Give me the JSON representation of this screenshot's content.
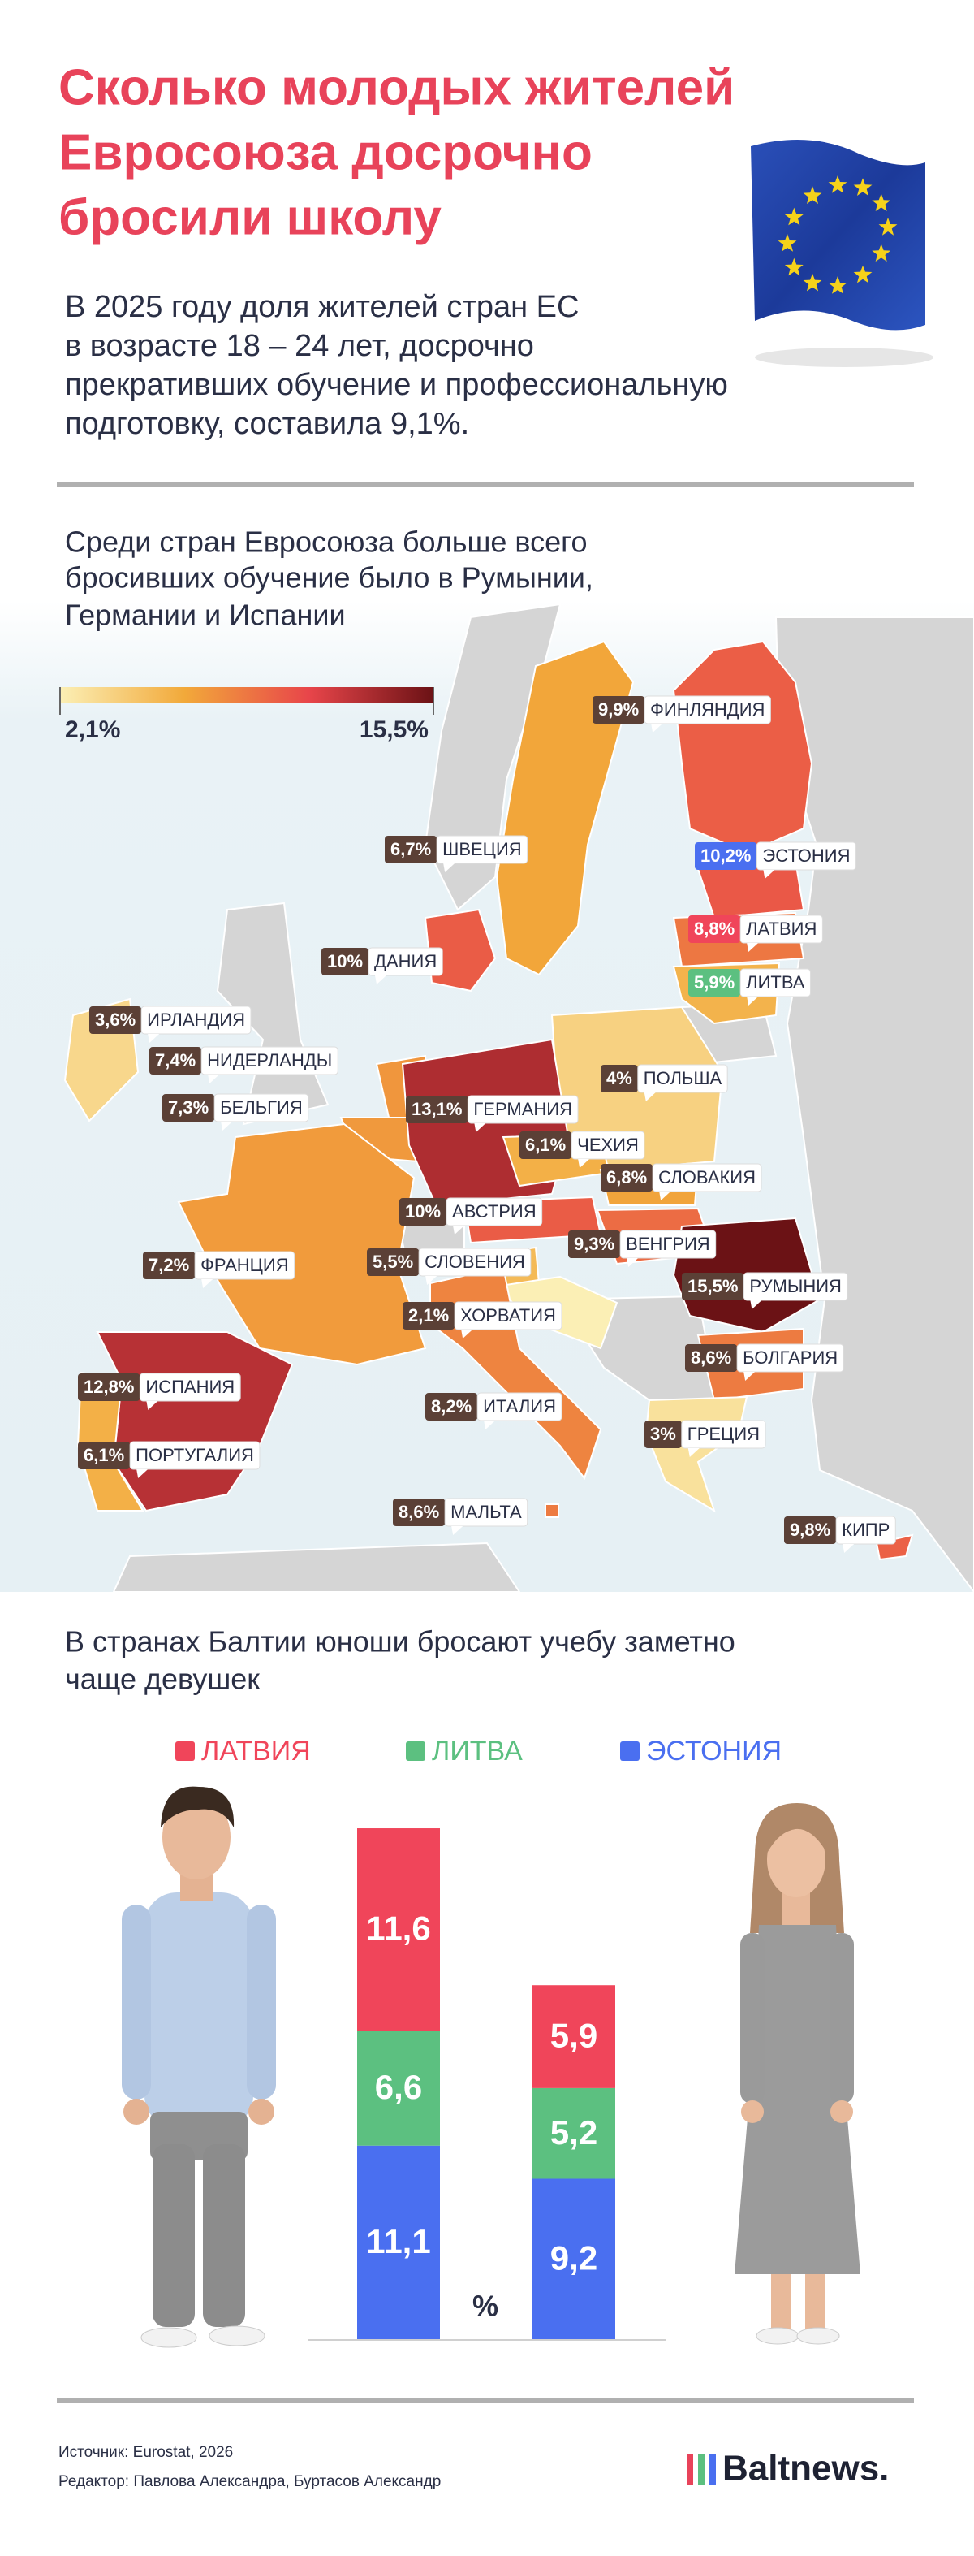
{
  "title": [
    "Сколько молодых жителей",
    "Евросоюза досрочно",
    "бросили школу"
  ],
  "subtitle": [
    "В 2025 году доля жителей стран ЕС",
    "в возрасте 18 – 24 лет, досрочно",
    "прекративших обучение и профессиональную",
    "подготовку, составила 9,1%."
  ],
  "map": {
    "heading": [
      "Среди стран Евросоюза больше всего",
      "бросивших обучение было в Румынии,",
      "Германии и Испании"
    ],
    "scale": [
      {
        "value": 2.1,
        "label": "2,1%"
      },
      {
        "value": 15.5,
        "label": "15,5%"
      }
    ],
    "scale_colors": [
      "#fbefb5",
      "#f2a93a",
      "#e8454a",
      "#6b1215"
    ],
    "countries": [
      {
        "name": "ФИНЛЯНДИЯ",
        "value": 9.9,
        "value_label": "9,9%",
        "badge": "#5b4036"
      },
      {
        "name": "ШВЕЦИЯ",
        "value": 6.7,
        "value_label": "6,7%",
        "badge": "#5b4036"
      },
      {
        "name": "ЭСТОНИЯ",
        "value": 10.2,
        "value_label": "10,2%",
        "badge": "#4a6ff0"
      },
      {
        "name": "ЛАТВИЯ",
        "value": 8.8,
        "value_label": "8,8%",
        "badge": "#f0455a"
      },
      {
        "name": "ДАНИЯ",
        "value": 10,
        "value_label": "10%",
        "badge": "#5b4036"
      },
      {
        "name": "ЛИТВА",
        "value": 5.9,
        "value_label": "5,9%",
        "badge": "#5cc080"
      },
      {
        "name": "ИРЛАНДИЯ",
        "value": 3.6,
        "value_label": "3,6%",
        "badge": "#5b4036"
      },
      {
        "name": "НИДЕРЛАНДЫ",
        "value": 7.4,
        "value_label": "7,4%",
        "badge": "#5b4036"
      },
      {
        "name": "ПОЛЬША",
        "value": 4,
        "value_label": "4%",
        "badge": "#5b4036"
      },
      {
        "name": "БЕЛЬГИЯ",
        "value": 7.3,
        "value_label": "7,3%",
        "badge": "#5b4036"
      },
      {
        "name": "ГЕРМАНИЯ",
        "value": 13.1,
        "value_label": "13,1%",
        "badge": "#5b4036"
      },
      {
        "name": "ЧЕХИЯ",
        "value": 6.1,
        "value_label": "6,1%",
        "badge": "#5b4036"
      },
      {
        "name": "СЛОВАКИЯ",
        "value": 6.8,
        "value_label": "6,8%",
        "badge": "#5b4036"
      },
      {
        "name": "АВСТРИЯ",
        "value": 10,
        "value_label": "10%",
        "badge": "#5b4036"
      },
      {
        "name": "ФРАНЦИЯ",
        "value": 7.2,
        "value_label": "7,2%",
        "badge": "#5b4036"
      },
      {
        "name": "СЛОВЕНИЯ",
        "value": 5.5,
        "value_label": "5,5%",
        "badge": "#5b4036"
      },
      {
        "name": "ВЕНГРИЯ",
        "value": 9.3,
        "value_label": "9,3%",
        "badge": "#5b4036"
      },
      {
        "name": "РУМЫНИЯ",
        "value": 15.5,
        "value_label": "15,5%",
        "badge": "#5b4036"
      },
      {
        "name": "ХОРВАТИЯ",
        "value": 2.1,
        "value_label": "2,1%",
        "badge": "#5b4036"
      },
      {
        "name": "БОЛГАРИЯ",
        "value": 8.6,
        "value_label": "8,6%",
        "badge": "#5b4036"
      },
      {
        "name": "ИСПАНИЯ",
        "value": 12.8,
        "value_label": "12,8%",
        "badge": "#5b4036"
      },
      {
        "name": "ИТАЛИЯ",
        "value": 8.2,
        "value_label": "8,2%",
        "badge": "#5b4036"
      },
      {
        "name": "ГРЕЦИЯ",
        "value": 3,
        "value_label": "3%",
        "badge": "#5b4036"
      },
      {
        "name": "ПОРТУГАЛИЯ",
        "value": 6.1,
        "value_label": "6,1%",
        "badge": "#5b4036"
      },
      {
        "name": "МАЛЬТА",
        "value": 8.6,
        "value_label": "8,6%",
        "badge": "#5b4036"
      },
      {
        "name": "КИПР",
        "value": 9.8,
        "value_label": "9,8%",
        "badge": "#5b4036"
      }
    ]
  },
  "chart_data": {
    "type": "bar",
    "stacked": true,
    "title": [
      "В странах Балтии юноши бросают учебу заметно",
      "чаще девушек"
    ],
    "categories": [
      null,
      null
    ],
    "series": [
      {
        "name": "ЛАТВИЯ",
        "color": "#f0455a",
        "values": [
          11.6,
          5.9
        ],
        "value_labels": [
          "11,6",
          "5,9"
        ]
      },
      {
        "name": "ЛИТВА",
        "color": "#5cc080",
        "values": [
          6.6,
          5.2
        ],
        "value_labels": [
          "6,6",
          "5,2"
        ]
      },
      {
        "name": "ЭСТОНИЯ",
        "color": "#4a6ff0",
        "values": [
          11.1,
          9.2
        ],
        "value_labels": [
          "11,1",
          "9,2"
        ]
      }
    ],
    "ylim": [
      0,
      30
    ],
    "unit": "%"
  },
  "footer": {
    "source": "Источник: Eurostat, 2026",
    "editor": "Редактор: Павлова Александра, Буртасов Александр",
    "logo": "Baltnews."
  }
}
